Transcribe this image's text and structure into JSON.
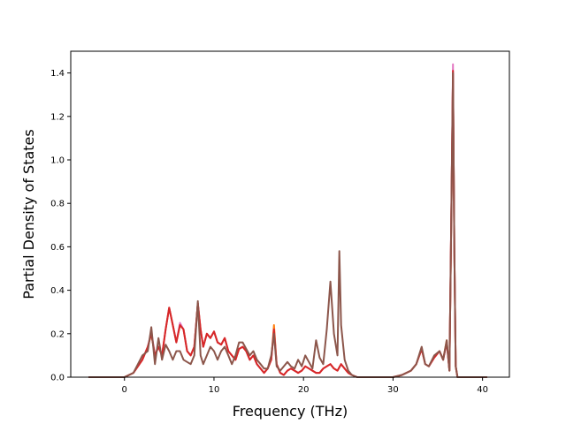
{
  "chart_data": {
    "type": "line",
    "title": "",
    "xlabel": "Frequency (THz)",
    "ylabel": "Partial Density of States",
    "xlim": [
      -6,
      43
    ],
    "ylim": [
      0,
      1.5
    ],
    "xticks": [
      0,
      10,
      20,
      30,
      40
    ],
    "yticks": [
      0.0,
      0.2,
      0.4,
      0.6,
      0.8,
      1.0,
      1.2,
      1.4
    ],
    "ytick_labels": [
      "0.0",
      "0.2",
      "0.4",
      "0.6",
      "0.8",
      "1.0",
      "1.2",
      "1.4"
    ],
    "grid": false,
    "legend": "none",
    "series": [
      {
        "color": "#ff7f0e",
        "x": [
          -4,
          0,
          1,
          2,
          2.6,
          3,
          3.4,
          3.8,
          4.2,
          4.6,
          5,
          5.4,
          5.8,
          6.2,
          6.6,
          7,
          7.4,
          7.8,
          8.2,
          8.5,
          8.8,
          9.2,
          9.6,
          10,
          10.4,
          10.8,
          11.2,
          11.6,
          12,
          12.4,
          12.8,
          13.2,
          13.6,
          14,
          14.4,
          14.8,
          15.2,
          15.6,
          16,
          16.4,
          16.7,
          17,
          17.4,
          17.8,
          18.2,
          18.6,
          19,
          19.4,
          19.8,
          20.2,
          20.6,
          21,
          21.4,
          21.8,
          22.2,
          22.6,
          23,
          23.4,
          23.8,
          24.2,
          24.6,
          25,
          25.4,
          26,
          27,
          28,
          30,
          31,
          32,
          32.6,
          33.2,
          33.6,
          34,
          34.6,
          35.2,
          35.6,
          36,
          36.3,
          36.5,
          36.7,
          36.85,
          37,
          37.2,
          38,
          40,
          40.5
        ],
        "y": [
          0,
          0,
          0.02,
          0.08,
          0.14,
          0.2,
          0.1,
          0.14,
          0.1,
          0.22,
          0.32,
          0.24,
          0.16,
          0.24,
          0.22,
          0.12,
          0.1,
          0.14,
          0.34,
          0.22,
          0.14,
          0.2,
          0.18,
          0.21,
          0.16,
          0.15,
          0.18,
          0.12,
          0.1,
          0.08,
          0.13,
          0.14,
          0.12,
          0.08,
          0.1,
          0.06,
          0.04,
          0.02,
          0.04,
          0.08,
          0.24,
          0.06,
          0.02,
          0.01,
          0.03,
          0.04,
          0.03,
          0.02,
          0.03,
          0.05,
          0.04,
          0.03,
          0.02,
          0.02,
          0.04,
          0.05,
          0.06,
          0.04,
          0.03,
          0.06,
          0.04,
          0.02,
          0.01,
          0,
          0,
          0,
          0,
          0.01,
          0.03,
          0.06,
          0.13,
          0.06,
          0.05,
          0.09,
          0.12,
          0.08,
          0.17,
          0.03,
          0.7,
          1.4,
          0.6,
          0.05,
          0,
          0,
          0,
          0
        ]
      },
      {
        "color": "#e377c2",
        "x": [
          -4,
          0,
          1,
          2,
          2.6,
          3,
          3.4,
          3.8,
          4.2,
          4.6,
          5,
          5.4,
          5.8,
          6.2,
          6.6,
          7,
          7.4,
          7.8,
          8.2,
          8.5,
          8.8,
          9.2,
          9.6,
          10,
          10.4,
          10.8,
          11.2,
          11.6,
          12,
          12.4,
          12.8,
          13.2,
          13.6,
          14,
          14.4,
          14.8,
          15.2,
          15.6,
          16,
          16.4,
          16.7,
          17,
          17.4,
          17.8,
          18.2,
          18.6,
          19,
          19.4,
          19.8,
          20.2,
          20.6,
          21,
          21.4,
          21.8,
          22.2,
          22.6,
          23,
          23.4,
          23.8,
          24.2,
          24.6,
          25,
          25.4,
          26,
          27,
          28,
          30,
          31,
          32,
          32.6,
          33.2,
          33.6,
          34,
          34.6,
          35.2,
          35.6,
          36,
          36.3,
          36.5,
          36.7,
          36.85,
          37,
          37.2,
          38,
          40,
          40.5
        ],
        "y": [
          0,
          0,
          0.02,
          0.08,
          0.14,
          0.21,
          0.1,
          0.14,
          0.1,
          0.22,
          0.32,
          0.24,
          0.16,
          0.25,
          0.22,
          0.12,
          0.1,
          0.14,
          0.34,
          0.22,
          0.14,
          0.2,
          0.18,
          0.21,
          0.16,
          0.15,
          0.18,
          0.12,
          0.1,
          0.08,
          0.13,
          0.14,
          0.12,
          0.08,
          0.1,
          0.06,
          0.04,
          0.02,
          0.04,
          0.08,
          0.22,
          0.06,
          0.02,
          0.01,
          0.03,
          0.04,
          0.03,
          0.02,
          0.03,
          0.05,
          0.04,
          0.03,
          0.02,
          0.02,
          0.04,
          0.05,
          0.06,
          0.04,
          0.03,
          0.06,
          0.04,
          0.02,
          0.01,
          0,
          0,
          0,
          0,
          0.01,
          0.03,
          0.06,
          0.13,
          0.06,
          0.05,
          0.09,
          0.12,
          0.08,
          0.16,
          0.03,
          0.72,
          1.44,
          0.6,
          0.05,
          0,
          0,
          0,
          0
        ]
      },
      {
        "color": "#d62728",
        "x": [
          -4,
          0,
          1,
          2,
          2.6,
          3,
          3.4,
          3.8,
          4.2,
          4.6,
          5,
          5.4,
          5.8,
          6.2,
          6.6,
          7,
          7.4,
          7.8,
          8.2,
          8.5,
          8.8,
          9.2,
          9.6,
          10,
          10.4,
          10.8,
          11.2,
          11.6,
          12,
          12.4,
          12.8,
          13.2,
          13.6,
          14,
          14.4,
          14.8,
          15.2,
          15.6,
          16,
          16.4,
          16.7,
          17,
          17.4,
          17.8,
          18.2,
          18.6,
          19,
          19.4,
          19.8,
          20.2,
          20.6,
          21,
          21.4,
          21.8,
          22.2,
          22.6,
          23,
          23.4,
          23.8,
          24.2,
          24.6,
          25,
          25.4,
          26,
          27,
          28,
          30,
          31,
          32,
          32.6,
          33.2,
          33.6,
          34,
          34.6,
          35.2,
          35.6,
          36,
          36.3,
          36.5,
          36.7,
          36.85,
          37,
          37.2,
          38,
          40,
          40.5
        ],
        "y": [
          0,
          0,
          0.02,
          0.08,
          0.14,
          0.2,
          0.1,
          0.14,
          0.1,
          0.22,
          0.32,
          0.24,
          0.16,
          0.24,
          0.22,
          0.12,
          0.1,
          0.14,
          0.34,
          0.22,
          0.14,
          0.2,
          0.18,
          0.21,
          0.16,
          0.15,
          0.18,
          0.12,
          0.1,
          0.08,
          0.13,
          0.14,
          0.12,
          0.08,
          0.1,
          0.06,
          0.04,
          0.02,
          0.04,
          0.08,
          0.22,
          0.06,
          0.02,
          0.01,
          0.03,
          0.04,
          0.03,
          0.02,
          0.03,
          0.05,
          0.04,
          0.03,
          0.02,
          0.02,
          0.04,
          0.05,
          0.06,
          0.04,
          0.03,
          0.06,
          0.04,
          0.02,
          0.01,
          0,
          0,
          0,
          0,
          0.01,
          0.03,
          0.06,
          0.13,
          0.06,
          0.05,
          0.09,
          0.12,
          0.08,
          0.16,
          0.03,
          0.7,
          1.41,
          0.6,
          0.05,
          0,
          0,
          0,
          0
        ]
      },
      {
        "color": "#8c564b",
        "x": [
          -4,
          0,
          1,
          2,
          2.6,
          3,
          3.4,
          3.8,
          4.2,
          4.6,
          5,
          5.4,
          5.8,
          6.2,
          6.6,
          7,
          7.4,
          7.8,
          8.2,
          8.5,
          8.8,
          9.2,
          9.6,
          10,
          10.4,
          10.8,
          11.2,
          11.6,
          12,
          12.4,
          12.8,
          13.2,
          13.6,
          14,
          14.4,
          14.8,
          15.2,
          15.6,
          16,
          16.4,
          16.7,
          17,
          17.4,
          17.8,
          18.2,
          18.6,
          19,
          19.4,
          19.8,
          20.2,
          20.6,
          21,
          21.4,
          21.8,
          22.2,
          22.6,
          23,
          23.4,
          23.8,
          24,
          24.2,
          24.6,
          25,
          25.4,
          26,
          27,
          28,
          30,
          31,
          32,
          32.6,
          33.2,
          33.6,
          34,
          34.6,
          35.2,
          35.6,
          36,
          36.3,
          36.5,
          36.7,
          36.85,
          37,
          37.2,
          38,
          40,
          40.5
        ],
        "y": [
          0,
          0,
          0.02,
          0.1,
          0.12,
          0.23,
          0.06,
          0.18,
          0.08,
          0.15,
          0.12,
          0.08,
          0.12,
          0.12,
          0.08,
          0.07,
          0.06,
          0.1,
          0.35,
          0.1,
          0.06,
          0.1,
          0.14,
          0.12,
          0.08,
          0.12,
          0.14,
          0.1,
          0.06,
          0.1,
          0.16,
          0.16,
          0.13,
          0.1,
          0.12,
          0.08,
          0.06,
          0.04,
          0.04,
          0.1,
          0.2,
          0.05,
          0.03,
          0.05,
          0.07,
          0.05,
          0.04,
          0.08,
          0.05,
          0.1,
          0.07,
          0.04,
          0.17,
          0.09,
          0.06,
          0.22,
          0.44,
          0.2,
          0.1,
          0.58,
          0.24,
          0.08,
          0.03,
          0.01,
          0,
          0,
          0,
          0,
          0.01,
          0.03,
          0.06,
          0.14,
          0.06,
          0.05,
          0.1,
          0.12,
          0.08,
          0.17,
          0.03,
          0.7,
          1.4,
          0.6,
          0.05,
          0,
          0,
          0,
          0
        ]
      }
    ]
  }
}
